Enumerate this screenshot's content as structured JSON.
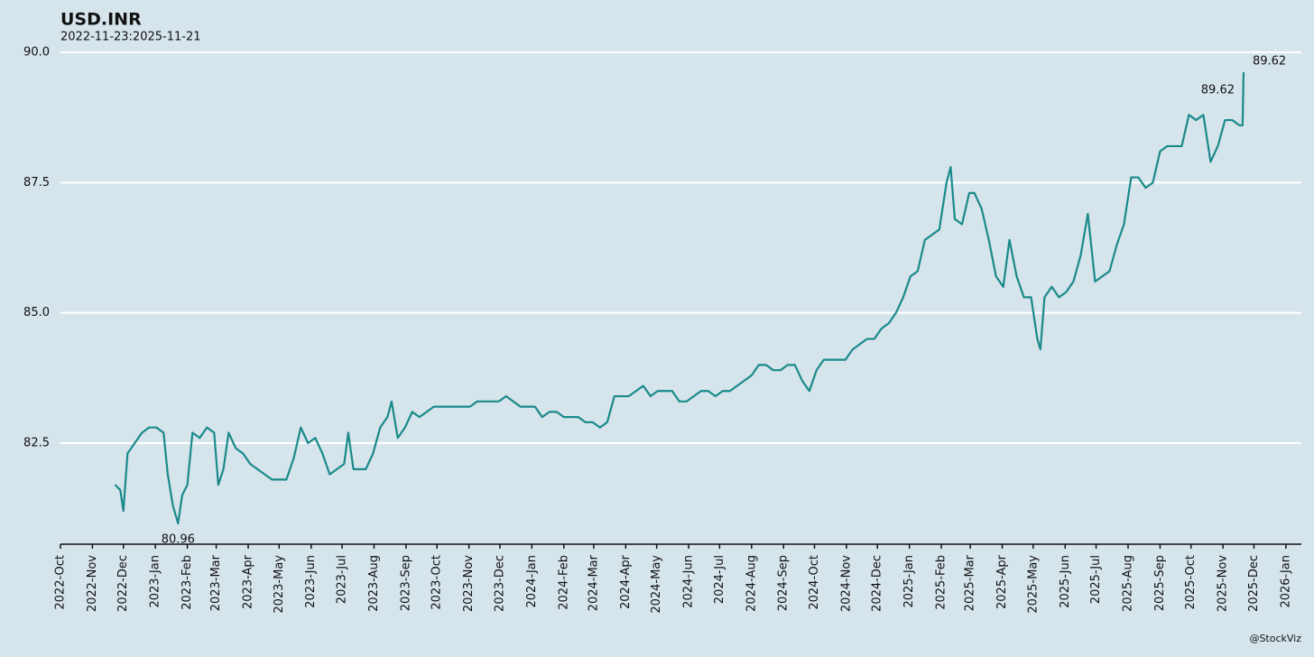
{
  "chart_data": {
    "type": "line",
    "title": "USD.INR",
    "subtitle": "2022-11-23:2025-11-21",
    "credit": "@StockViz",
    "x": [
      "2022-11-23",
      "2022-11-28",
      "2022-12-01",
      "2022-12-05",
      "2022-12-12",
      "2022-12-19",
      "2022-12-26",
      "2023-01-02",
      "2023-01-09",
      "2023-01-13",
      "2023-01-18",
      "2023-01-23",
      "2023-01-27",
      "2023-02-01",
      "2023-02-06",
      "2023-02-13",
      "2023-02-20",
      "2023-02-27",
      "2023-03-03",
      "2023-03-08",
      "2023-03-13",
      "2023-03-20",
      "2023-03-27",
      "2023-04-03",
      "2023-04-10",
      "2023-04-17",
      "2023-04-24",
      "2023-05-01",
      "2023-05-08",
      "2023-05-15",
      "2023-05-22",
      "2023-05-29",
      "2023-06-05",
      "2023-06-12",
      "2023-06-19",
      "2023-06-26",
      "2023-07-03",
      "2023-07-07",
      "2023-07-12",
      "2023-07-17",
      "2023-07-24",
      "2023-07-31",
      "2023-08-07",
      "2023-08-14",
      "2023-08-18",
      "2023-08-24",
      "2023-08-31",
      "2023-09-07",
      "2023-09-14",
      "2023-09-21",
      "2023-09-28",
      "2023-10-05",
      "2023-10-12",
      "2023-10-19",
      "2023-10-26",
      "2023-11-02",
      "2023-11-09",
      "2023-11-16",
      "2023-11-23",
      "2023-11-30",
      "2023-12-07",
      "2023-12-14",
      "2023-12-21",
      "2023-12-28",
      "2024-01-04",
      "2024-01-11",
      "2024-01-18",
      "2024-01-25",
      "2024-02-01",
      "2024-02-08",
      "2024-02-15",
      "2024-02-22",
      "2024-02-29",
      "2024-03-07",
      "2024-03-14",
      "2024-03-21",
      "2024-03-28",
      "2024-04-04",
      "2024-04-11",
      "2024-04-18",
      "2024-04-25",
      "2024-05-02",
      "2024-05-09",
      "2024-05-16",
      "2024-05-23",
      "2024-05-30",
      "2024-06-06",
      "2024-06-13",
      "2024-06-20",
      "2024-06-27",
      "2024-07-04",
      "2024-07-11",
      "2024-07-18",
      "2024-07-25",
      "2024-08-01",
      "2024-08-08",
      "2024-08-15",
      "2024-08-22",
      "2024-08-29",
      "2024-09-05",
      "2024-09-12",
      "2024-09-19",
      "2024-09-26",
      "2024-10-03",
      "2024-10-10",
      "2024-10-17",
      "2024-10-24",
      "2024-10-31",
      "2024-11-07",
      "2024-11-14",
      "2024-11-21",
      "2024-11-28",
      "2024-12-05",
      "2024-12-12",
      "2024-12-19",
      "2024-12-26",
      "2025-01-02",
      "2025-01-09",
      "2025-01-16",
      "2025-01-23",
      "2025-01-30",
      "2025-02-06",
      "2025-02-10",
      "2025-02-14",
      "2025-02-21",
      "2025-02-28",
      "2025-03-05",
      "2025-03-12",
      "2025-03-19",
      "2025-03-26",
      "2025-04-02",
      "2025-04-08",
      "2025-04-15",
      "2025-04-22",
      "2025-04-29",
      "2025-05-05",
      "2025-05-08",
      "2025-05-12",
      "2025-05-19",
      "2025-05-26",
      "2025-06-02",
      "2025-06-09",
      "2025-06-16",
      "2025-06-23",
      "2025-06-30",
      "2025-07-07",
      "2025-07-14",
      "2025-07-21",
      "2025-07-28",
      "2025-08-04",
      "2025-08-11",
      "2025-08-18",
      "2025-08-25",
      "2025-09-01",
      "2025-09-08",
      "2025-09-15",
      "2025-09-22",
      "2025-09-29",
      "2025-10-06",
      "2025-10-13",
      "2025-10-20",
      "2025-10-27",
      "2025-11-03",
      "2025-11-10",
      "2025-11-17",
      "2025-11-20",
      "2025-11-21"
    ],
    "series": [
      {
        "color": "#1a8a8a",
        "values": [
          81.7,
          81.6,
          81.2,
          82.3,
          82.5,
          82.7,
          82.8,
          82.8,
          82.7,
          81.9,
          81.3,
          80.96,
          81.5,
          81.7,
          82.7,
          82.6,
          82.8,
          82.7,
          81.7,
          82.0,
          82.7,
          82.4,
          82.3,
          82.1,
          82.0,
          81.9,
          81.8,
          81.8,
          81.8,
          82.2,
          82.8,
          82.5,
          82.6,
          82.3,
          81.9,
          82.0,
          82.1,
          82.7,
          82.0,
          82.0,
          82.0,
          82.3,
          82.8,
          83.0,
          83.3,
          82.6,
          82.8,
          83.1,
          83.0,
          83.1,
          83.2,
          83.2,
          83.2,
          83.2,
          83.2,
          83.2,
          83.3,
          83.3,
          83.3,
          83.3,
          83.4,
          83.3,
          83.2,
          83.2,
          83.2,
          83.0,
          83.1,
          83.1,
          83.0,
          83.0,
          83.0,
          82.9,
          82.9,
          82.8,
          82.9,
          83.4,
          83.4,
          83.4,
          83.5,
          83.6,
          83.4,
          83.5,
          83.5,
          83.5,
          83.3,
          83.3,
          83.4,
          83.5,
          83.5,
          83.4,
          83.5,
          83.5,
          83.6,
          83.7,
          83.8,
          84.0,
          84.0,
          83.9,
          83.9,
          84.0,
          84.0,
          83.7,
          83.5,
          83.9,
          84.1,
          84.1,
          84.1,
          84.1,
          84.3,
          84.4,
          84.5,
          84.5,
          84.7,
          84.8,
          85.0,
          85.3,
          85.7,
          85.8,
          86.4,
          86.5,
          86.6,
          87.5,
          87.8,
          86.8,
          86.7,
          87.3,
          87.3,
          87.0,
          86.4,
          85.7,
          85.5,
          86.4,
          85.7,
          85.3,
          85.3,
          84.5,
          84.3,
          85.3,
          85.5,
          85.3,
          85.4,
          85.6,
          86.1,
          86.9,
          85.6,
          85.7,
          85.8,
          86.3,
          86.7,
          87.6,
          87.6,
          87.4,
          87.5,
          88.1,
          88.2,
          88.2,
          88.2,
          88.8,
          88.7,
          88.8,
          87.9,
          88.2,
          88.7,
          88.7,
          88.6,
          88.6,
          89.62
        ]
      }
    ],
    "annotations": [
      {
        "x": "2023-01-23",
        "value": 80.96
      },
      {
        "x": "2025-11-21",
        "value": 89.62
      },
      {
        "x": "2025-11-21",
        "value": 89.62
      }
    ],
    "xlim": [
      "2022-10-01",
      "2026-01-16"
    ],
    "xticks": [
      {
        "value": "2022-10-01",
        "label": "2022-Oct"
      },
      {
        "value": "2022-11-01",
        "label": "2022-Nov"
      },
      {
        "value": "2022-12-01",
        "label": "2022-Dec"
      },
      {
        "value": "2023-01-01",
        "label": "2023-Jan"
      },
      {
        "value": "2023-02-01",
        "label": "2023-Feb"
      },
      {
        "value": "2023-03-01",
        "label": "2023-Mar"
      },
      {
        "value": "2023-04-01",
        "label": "2023-Apr"
      },
      {
        "value": "2023-05-01",
        "label": "2023-May"
      },
      {
        "value": "2023-06-01",
        "label": "2023-Jun"
      },
      {
        "value": "2023-07-01",
        "label": "2023-Jul"
      },
      {
        "value": "2023-08-01",
        "label": "2023-Aug"
      },
      {
        "value": "2023-09-01",
        "label": "2023-Sep"
      },
      {
        "value": "2023-10-01",
        "label": "2023-Oct"
      },
      {
        "value": "2023-11-01",
        "label": "2023-Nov"
      },
      {
        "value": "2023-12-01",
        "label": "2023-Dec"
      },
      {
        "value": "2024-01-01",
        "label": "2024-Jan"
      },
      {
        "value": "2024-02-01",
        "label": "2024-Feb"
      },
      {
        "value": "2024-03-01",
        "label": "2024-Mar"
      },
      {
        "value": "2024-04-01",
        "label": "2024-Apr"
      },
      {
        "value": "2024-05-01",
        "label": "2024-May"
      },
      {
        "value": "2024-06-01",
        "label": "2024-Jun"
      },
      {
        "value": "2024-07-01",
        "label": "2024-Jul"
      },
      {
        "value": "2024-08-01",
        "label": "2024-Aug"
      },
      {
        "value": "2024-09-01",
        "label": "2024-Sep"
      },
      {
        "value": "2024-10-01",
        "label": "2024-Oct"
      },
      {
        "value": "2024-11-01",
        "label": "2024-Nov"
      },
      {
        "value": "2024-12-01",
        "label": "2024-Dec"
      },
      {
        "value": "2025-01-01",
        "label": "2025-Jan"
      },
      {
        "value": "2025-02-01",
        "label": "2025-Feb"
      },
      {
        "value": "2025-03-01",
        "label": "2025-Mar"
      },
      {
        "value": "2025-04-01",
        "label": "2025-Apr"
      },
      {
        "value": "2025-05-01",
        "label": "2025-May"
      },
      {
        "value": "2025-06-01",
        "label": "2025-Jun"
      },
      {
        "value": "2025-07-01",
        "label": "2025-Jul"
      },
      {
        "value": "2025-08-01",
        "label": "2025-Aug"
      },
      {
        "value": "2025-09-01",
        "label": "2025-Sep"
      },
      {
        "value": "2025-10-01",
        "label": "2025-Oct"
      },
      {
        "value": "2025-11-01",
        "label": "2025-Nov"
      },
      {
        "value": "2025-12-01",
        "label": "2025-Dec"
      },
      {
        "value": "2026-01-01",
        "label": "2026-Jan"
      }
    ],
    "ylim": [
      80.56,
      90.3
    ],
    "yticks": [
      {
        "value": 82.5,
        "label": "82.5"
      },
      {
        "value": 85,
        "label": "85.0"
      },
      {
        "value": 87.5,
        "label": "87.5"
      },
      {
        "value": 90,
        "label": "90.0"
      }
    ],
    "grid": true
  }
}
